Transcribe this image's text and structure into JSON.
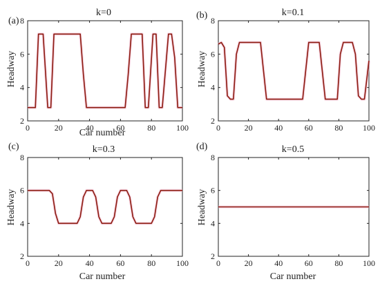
{
  "figure": {
    "colors": {
      "line": "#8b1a0e",
      "halo": "#f2b8cf",
      "axis": "#222222"
    }
  },
  "chart_data": [
    {
      "type": "line",
      "panel_label": "(a)",
      "title": "k=0",
      "xlabel": "Car number",
      "ylabel": "Headway",
      "xlim": [
        0,
        100
      ],
      "ylim": [
        2,
        8
      ],
      "xticks": [
        0,
        20,
        40,
        60,
        80,
        100
      ],
      "yticks": [
        2,
        4,
        6,
        8
      ],
      "series": [
        {
          "x": [
            0,
            5,
            7,
            10,
            13,
            15,
            17,
            19,
            34,
            36,
            38,
            40,
            63,
            65,
            67,
            69,
            74,
            76,
            78,
            81,
            83,
            85,
            87,
            91,
            93,
            95,
            97,
            100
          ],
          "y": [
            2.8,
            2.8,
            7.2,
            7.2,
            2.8,
            2.8,
            7.2,
            7.2,
            7.2,
            4.8,
            2.8,
            2.8,
            2.8,
            4.8,
            7.2,
            7.2,
            7.2,
            2.8,
            2.8,
            7.2,
            7.2,
            2.8,
            2.8,
            7.2,
            7.2,
            5.8,
            2.8,
            2.8
          ]
        }
      ]
    },
    {
      "type": "line",
      "panel_label": "(b)",
      "title": "k=0.1",
      "xlabel": "",
      "ylabel": "Headway",
      "xlim": [
        0,
        100
      ],
      "ylim": [
        2,
        8
      ],
      "xticks": [
        0,
        20,
        40,
        60,
        80,
        100
      ],
      "yticks": [
        2,
        4,
        6,
        8
      ],
      "series": [
        {
          "x": [
            0,
            2,
            4,
            6,
            8,
            10,
            12,
            14,
            28,
            30,
            32,
            34,
            56,
            58,
            60,
            62,
            67,
            69,
            71,
            73,
            79,
            81,
            83,
            85,
            89,
            91,
            93,
            95,
            97,
            100
          ],
          "y": [
            6.6,
            6.7,
            6.4,
            3.5,
            3.3,
            3.3,
            6.0,
            6.7,
            6.7,
            5.0,
            3.3,
            3.3,
            3.3,
            5.0,
            6.7,
            6.7,
            6.7,
            5.0,
            3.3,
            3.3,
            3.3,
            6.0,
            6.7,
            6.7,
            6.7,
            6.0,
            3.5,
            3.3,
            3.3,
            5.6
          ]
        }
      ]
    },
    {
      "type": "line",
      "panel_label": "(c)",
      "title": "k=0.3",
      "xlabel": "Car number",
      "ylabel": "Headway",
      "xlim": [
        0,
        100
      ],
      "ylim": [
        2,
        8
      ],
      "xticks": [
        0,
        20,
        40,
        60,
        80,
        100
      ],
      "yticks": [
        2,
        4,
        6,
        8
      ],
      "series": [
        {
          "x": [
            0,
            14,
            16,
            18,
            20,
            32,
            34,
            36,
            38,
            42,
            44,
            46,
            48,
            54,
            56,
            58,
            60,
            64,
            66,
            68,
            70,
            80,
            82,
            84,
            86,
            100
          ],
          "y": [
            6.0,
            6.0,
            5.8,
            4.6,
            4.0,
            4.0,
            4.4,
            5.6,
            6.0,
            6.0,
            5.6,
            4.4,
            4.0,
            4.0,
            4.4,
            5.6,
            6.0,
            6.0,
            5.6,
            4.4,
            4.0,
            4.0,
            4.4,
            5.6,
            6.0,
            6.0
          ]
        }
      ]
    },
    {
      "type": "line",
      "panel_label": "(d)",
      "title": "k=0.5",
      "xlabel": "Car number",
      "ylabel": "Headway",
      "xlim": [
        0,
        100
      ],
      "ylim": [
        2,
        8
      ],
      "xticks": [
        0,
        20,
        40,
        60,
        80,
        100
      ],
      "yticks": [
        2,
        4,
        6,
        8
      ],
      "series": [
        {
          "x": [
            0,
            100
          ],
          "y": [
            5.0,
            5.0
          ]
        }
      ]
    }
  ]
}
